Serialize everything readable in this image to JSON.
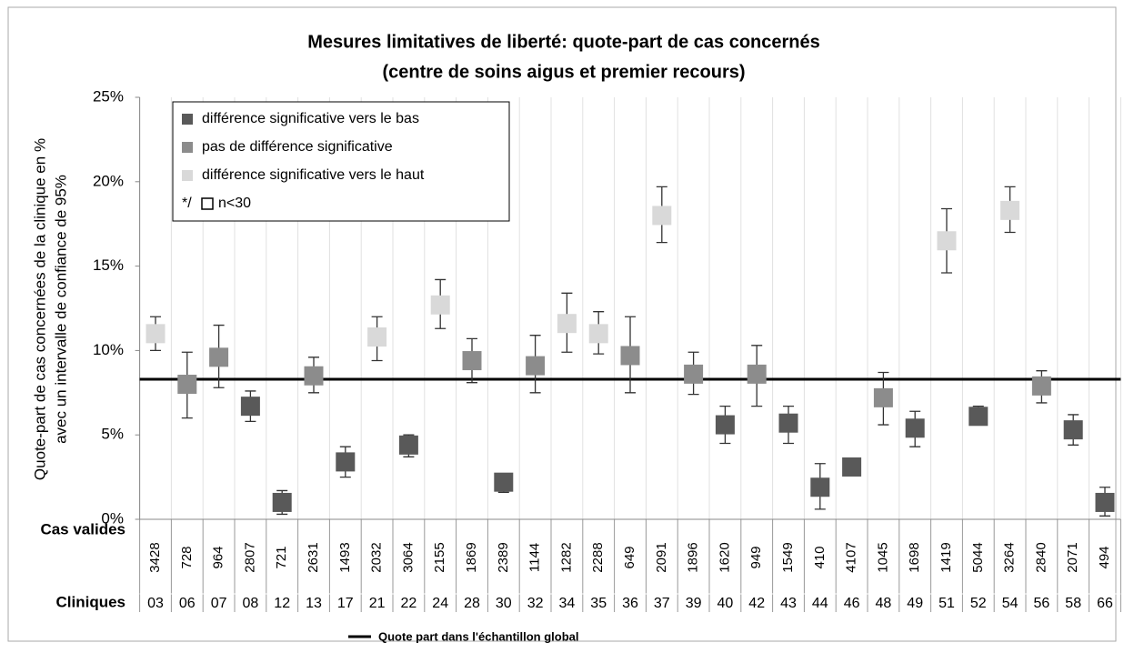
{
  "chart_data": {
    "type": "errorbar",
    "title": [
      "Mesures limitatives de liberté: quote-part de cas concernés",
      "(centre de soins aigus et premier recours)"
    ],
    "y_label": [
      "Quote-part de cas concernées de la clinique en %",
      "avec un intervalle de confiance de 95%"
    ],
    "ylim": [
      0,
      25
    ],
    "yticks": [
      {
        "value": 0,
        "label": "0%"
      },
      {
        "value": 5,
        "label": "5%"
      },
      {
        "value": 10,
        "label": "10%"
      },
      {
        "value": 15,
        "label": "15%"
      },
      {
        "value": 20,
        "label": "20%"
      },
      {
        "value": 25,
        "label": "25%"
      }
    ],
    "categories": [
      "03",
      "06",
      "07",
      "08",
      "12",
      "13",
      "17",
      "21",
      "22",
      "24",
      "28",
      "30",
      "32",
      "34",
      "35",
      "36",
      "37",
      "39",
      "40",
      "42",
      "43",
      "44",
      "46",
      "48",
      "49",
      "51",
      "52",
      "54",
      "56",
      "58",
      "66"
    ],
    "categories_label": "Cliniques",
    "counts_label": "Cas valides",
    "counts": [
      3428,
      728,
      964,
      2807,
      721,
      2631,
      1493,
      2032,
      3064,
      2155,
      1869,
      2389,
      1144,
      1282,
      2288,
      649,
      2091,
      1896,
      1620,
      949,
      1549,
      410,
      4107,
      1045,
      1698,
      1419,
      5044,
      3264,
      2840,
      2071,
      494
    ],
    "series": [
      {
        "name": "différence significative vers le bas",
        "color": "#595959",
        "values": [
          null,
          null,
          null,
          6.7,
          1.0,
          null,
          3.4,
          null,
          4.4,
          null,
          null,
          2.2,
          null,
          null,
          null,
          null,
          null,
          null,
          5.6,
          null,
          5.7,
          1.9,
          3.1,
          null,
          5.4,
          null,
          6.1,
          null,
          null,
          5.3,
          1.0
        ],
        "lower": [
          null,
          null,
          null,
          5.8,
          0.3,
          null,
          2.5,
          null,
          3.7,
          null,
          null,
          1.6,
          null,
          null,
          null,
          null,
          null,
          null,
          4.5,
          null,
          4.5,
          0.6,
          2.6,
          null,
          4.3,
          null,
          5.6,
          null,
          null,
          4.4,
          0.2
        ],
        "upper": [
          null,
          null,
          null,
          7.6,
          1.7,
          null,
          4.3,
          null,
          5.0,
          null,
          null,
          2.6,
          null,
          null,
          null,
          null,
          null,
          null,
          6.7,
          null,
          6.7,
          3.3,
          3.3,
          null,
          6.4,
          null,
          6.7,
          null,
          null,
          6.2,
          1.9
        ]
      },
      {
        "name": "pas de différence significative",
        "color": "#8c8c8c",
        "values": [
          null,
          8.0,
          9.6,
          null,
          null,
          8.5,
          null,
          null,
          null,
          null,
          9.4,
          null,
          9.1,
          null,
          null,
          9.7,
          null,
          8.6,
          null,
          8.6,
          null,
          null,
          null,
          7.2,
          null,
          null,
          null,
          null,
          7.9,
          null,
          null
        ],
        "lower": [
          null,
          6.0,
          7.8,
          null,
          null,
          7.5,
          null,
          null,
          null,
          null,
          8.1,
          null,
          7.5,
          null,
          null,
          7.5,
          null,
          7.4,
          null,
          6.7,
          null,
          null,
          null,
          5.6,
          null,
          null,
          null,
          null,
          6.9,
          null,
          null
        ],
        "upper": [
          null,
          9.9,
          11.5,
          null,
          null,
          9.6,
          null,
          null,
          null,
          null,
          10.7,
          null,
          10.9,
          null,
          null,
          12.0,
          null,
          9.9,
          null,
          10.3,
          null,
          null,
          null,
          8.7,
          null,
          null,
          null,
          null,
          8.8,
          null,
          null
        ]
      },
      {
        "name": "différence significative vers le haut",
        "color": "#d9d9d9",
        "values": [
          11.0,
          null,
          null,
          null,
          null,
          null,
          null,
          10.8,
          null,
          12.7,
          null,
          null,
          null,
          11.6,
          11.0,
          null,
          18.0,
          null,
          null,
          null,
          null,
          null,
          null,
          null,
          null,
          16.5,
          null,
          18.3,
          null,
          null,
          null
        ],
        "lower": [
          10.0,
          null,
          null,
          null,
          null,
          null,
          null,
          9.4,
          null,
          11.3,
          null,
          null,
          null,
          9.9,
          9.8,
          null,
          16.4,
          null,
          null,
          null,
          null,
          null,
          null,
          null,
          null,
          14.6,
          null,
          17.0,
          null,
          null,
          null
        ],
        "upper": [
          12.0,
          null,
          null,
          null,
          null,
          null,
          null,
          12.0,
          null,
          14.2,
          null,
          null,
          null,
          13.4,
          12.3,
          null,
          19.7,
          null,
          null,
          null,
          null,
          null,
          null,
          null,
          null,
          18.4,
          null,
          19.7,
          null,
          null,
          null
        ]
      }
    ],
    "note": [
      "*/",
      "n<30"
    ],
    "reference": {
      "name": "Quote part dans l'échantillon global",
      "value": 8.3,
      "color": "#000000"
    }
  }
}
